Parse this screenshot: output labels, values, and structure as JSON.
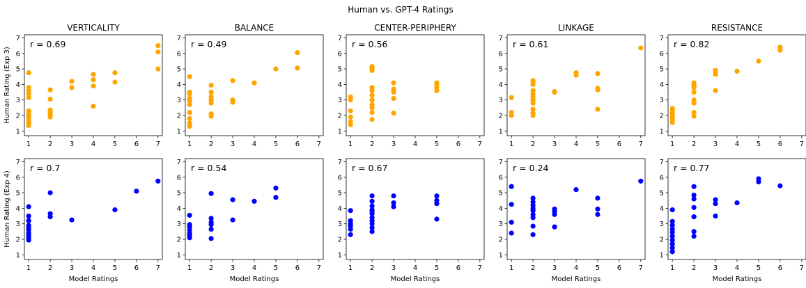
{
  "figure": {
    "title": "Human vs. GPT-4 Ratings"
  },
  "chart_data": [
    {
      "type": "scatter",
      "row": 0,
      "col": 0,
      "title": "VERTICALITY",
      "ylabel": "Human Rating (Exp 3)",
      "xlabel": "",
      "r_label": "r = 0.69",
      "xlim": [
        0.8,
        7.2
      ],
      "ylim": [
        0.7,
        7.2
      ],
      "color": "#ffa500",
      "points": [
        [
          1,
          1.35
        ],
        [
          1,
          1.5
        ],
        [
          1,
          1.7
        ],
        [
          1,
          1.9
        ],
        [
          1,
          2.1
        ],
        [
          1,
          2.3
        ],
        [
          1,
          3.15
        ],
        [
          1,
          3.4
        ],
        [
          1,
          3.6
        ],
        [
          1,
          3.8
        ],
        [
          1,
          4.75
        ],
        [
          2,
          1.9
        ],
        [
          2,
          2.05
        ],
        [
          2,
          2.2
        ],
        [
          2,
          2.35
        ],
        [
          2,
          3.05
        ],
        [
          2,
          3.65
        ],
        [
          3,
          3.8
        ],
        [
          3,
          4.2
        ],
        [
          4,
          2.6
        ],
        [
          4,
          3.9
        ],
        [
          4,
          4.3
        ],
        [
          4,
          4.65
        ],
        [
          5,
          4.15
        ],
        [
          5,
          4.75
        ],
        [
          7,
          5.0
        ],
        [
          7,
          6.1
        ],
        [
          7,
          6.5
        ]
      ]
    },
    {
      "type": "scatter",
      "row": 0,
      "col": 1,
      "title": "BALANCE",
      "ylabel": "",
      "xlabel": "",
      "r_label": "r = 0.49",
      "xlim": [
        0.8,
        7.2
      ],
      "ylim": [
        0.7,
        7.2
      ],
      "color": "#ffa500",
      "points": [
        [
          1,
          1.3
        ],
        [
          1,
          1.5
        ],
        [
          1,
          1.8
        ],
        [
          1,
          2.2
        ],
        [
          1,
          2.7
        ],
        [
          1,
          2.95
        ],
        [
          1,
          3.1
        ],
        [
          1,
          3.4
        ],
        [
          1,
          3.5
        ],
        [
          1,
          4.5
        ],
        [
          2,
          1.95
        ],
        [
          2,
          2.1
        ],
        [
          2,
          2.8
        ],
        [
          2,
          3.0
        ],
        [
          2,
          3.2
        ],
        [
          2,
          3.5
        ],
        [
          2,
          3.95
        ],
        [
          3,
          2.85
        ],
        [
          3,
          3.0
        ],
        [
          3,
          4.25
        ],
        [
          4,
          4.1
        ],
        [
          5,
          5.0
        ],
        [
          6,
          5.05
        ],
        [
          6,
          6.05
        ]
      ]
    },
    {
      "type": "scatter",
      "row": 0,
      "col": 2,
      "title": "CENTER-PERIPHERY",
      "ylabel": "",
      "xlabel": "",
      "r_label": "r = 0.56",
      "xlim": [
        0.8,
        7.2
      ],
      "ylim": [
        0.7,
        7.2
      ],
      "color": "#ffa500",
      "points": [
        [
          1,
          1.4
        ],
        [
          1,
          1.6
        ],
        [
          1,
          1.9
        ],
        [
          1,
          2.3
        ],
        [
          1,
          3.0
        ],
        [
          1,
          3.2
        ],
        [
          2,
          1.75
        ],
        [
          2,
          2.2
        ],
        [
          2,
          2.5
        ],
        [
          2,
          2.7
        ],
        [
          2,
          3.0
        ],
        [
          2,
          3.3
        ],
        [
          2,
          3.6
        ],
        [
          2,
          3.8
        ],
        [
          2,
          4.9
        ],
        [
          2,
          5.05
        ],
        [
          2,
          5.15
        ],
        [
          3,
          2.15
        ],
        [
          3,
          3.1
        ],
        [
          3,
          3.5
        ],
        [
          3,
          3.7
        ],
        [
          3,
          4.1
        ],
        [
          5,
          3.6
        ],
        [
          5,
          3.8
        ],
        [
          5,
          4.0
        ],
        [
          5,
          4.1
        ]
      ]
    },
    {
      "type": "scatter",
      "row": 0,
      "col": 3,
      "title": "LINKAGE",
      "ylabel": "",
      "xlabel": "",
      "r_label": "r = 0.61",
      "xlim": [
        0.8,
        7.2
      ],
      "ylim": [
        0.7,
        7.2
      ],
      "color": "#ffa500",
      "points": [
        [
          1,
          2.0
        ],
        [
          1,
          2.2
        ],
        [
          1,
          3.15
        ],
        [
          2,
          2.0
        ],
        [
          2,
          2.15
        ],
        [
          2,
          2.4
        ],
        [
          2,
          2.8
        ],
        [
          2,
          3.0
        ],
        [
          2,
          3.2
        ],
        [
          2,
          3.4
        ],
        [
          2,
          3.6
        ],
        [
          2,
          4.0
        ],
        [
          2,
          4.15
        ],
        [
          2,
          4.25
        ],
        [
          3,
          3.5
        ],
        [
          3,
          3.55
        ],
        [
          4,
          4.6
        ],
        [
          4,
          4.75
        ],
        [
          5,
          2.4
        ],
        [
          5,
          3.65
        ],
        [
          5,
          3.75
        ],
        [
          5,
          4.7
        ],
        [
          7,
          6.35
        ]
      ]
    },
    {
      "type": "scatter",
      "row": 0,
      "col": 4,
      "title": "RESISTANCE",
      "ylabel": "",
      "xlabel": "",
      "r_label": "r = 0.82",
      "xlim": [
        0.8,
        7.2
      ],
      "ylim": [
        0.7,
        7.2
      ],
      "color": "#ffa500",
      "points": [
        [
          1,
          1.55
        ],
        [
          1,
          1.7
        ],
        [
          1,
          1.85
        ],
        [
          1,
          2.0
        ],
        [
          1,
          2.15
        ],
        [
          1,
          2.3
        ],
        [
          1,
          2.45
        ],
        [
          2,
          1.95
        ],
        [
          2,
          2.2
        ],
        [
          2,
          2.8
        ],
        [
          2,
          3.0
        ],
        [
          2,
          3.5
        ],
        [
          2,
          3.8
        ],
        [
          2,
          3.95
        ],
        [
          2,
          4.1
        ],
        [
          3,
          3.6
        ],
        [
          3,
          4.65
        ],
        [
          3,
          4.8
        ],
        [
          3,
          4.9
        ],
        [
          4,
          4.85
        ],
        [
          5,
          5.5
        ],
        [
          6,
          6.2
        ],
        [
          6,
          6.4
        ]
      ]
    },
    {
      "type": "scatter",
      "row": 1,
      "col": 0,
      "title": "",
      "ylabel": "Human Rating (Exp 4)",
      "xlabel": "Model Ratings",
      "r_label": "r = 0.7",
      "xlim": [
        0.8,
        7.2
      ],
      "ylim": [
        0.7,
        7.2
      ],
      "color": "#0000ff",
      "points": [
        [
          1,
          1.95
        ],
        [
          1,
          2.1
        ],
        [
          1,
          2.25
        ],
        [
          1,
          2.4
        ],
        [
          1,
          2.6
        ],
        [
          1,
          2.75
        ],
        [
          1,
          2.9
        ],
        [
          1,
          3.2
        ],
        [
          1,
          3.5
        ],
        [
          1,
          4.1
        ],
        [
          2,
          3.45
        ],
        [
          2,
          3.65
        ],
        [
          2,
          5.0
        ],
        [
          3,
          3.25
        ],
        [
          5,
          3.9
        ],
        [
          6,
          5.1
        ],
        [
          7,
          5.75
        ]
      ]
    },
    {
      "type": "scatter",
      "row": 1,
      "col": 1,
      "title": "",
      "ylabel": "",
      "xlabel": "Model Ratings",
      "r_label": "r = 0.54",
      "xlim": [
        0.8,
        7.2
      ],
      "ylim": [
        0.7,
        7.2
      ],
      "color": "#0000ff",
      "points": [
        [
          1,
          2.1
        ],
        [
          1,
          2.25
        ],
        [
          1,
          2.4
        ],
        [
          1,
          2.6
        ],
        [
          1,
          2.8
        ],
        [
          1,
          2.95
        ],
        [
          1,
          3.55
        ],
        [
          2,
          2.05
        ],
        [
          2,
          2.65
        ],
        [
          2,
          2.95
        ],
        [
          2,
          3.1
        ],
        [
          2,
          3.35
        ],
        [
          2,
          4.95
        ],
        [
          3,
          3.25
        ],
        [
          3,
          4.55
        ],
        [
          4,
          4.45
        ],
        [
          5,
          4.7
        ],
        [
          5,
          5.3
        ]
      ]
    },
    {
      "type": "scatter",
      "row": 1,
      "col": 2,
      "title": "",
      "ylabel": "",
      "xlabel": "Model Ratings",
      "r_label": "r = 0.67",
      "xlim": [
        0.8,
        7.2
      ],
      "ylim": [
        0.7,
        7.2
      ],
      "color": "#0000ff",
      "points": [
        [
          1,
          2.3
        ],
        [
          1,
          2.65
        ],
        [
          1,
          2.85
        ],
        [
          1,
          3.0
        ],
        [
          1,
          3.2
        ],
        [
          1,
          3.85
        ],
        [
          2,
          2.5
        ],
        [
          2,
          2.75
        ],
        [
          2,
          3.0
        ],
        [
          2,
          3.2
        ],
        [
          2,
          3.4
        ],
        [
          2,
          3.65
        ],
        [
          2,
          3.8
        ],
        [
          2,
          3.9
        ],
        [
          2,
          4.15
        ],
        [
          2,
          4.45
        ],
        [
          2,
          4.8
        ],
        [
          3,
          4.1
        ],
        [
          3,
          4.35
        ],
        [
          3,
          4.8
        ],
        [
          5,
          3.3
        ],
        [
          5,
          4.3
        ],
        [
          5,
          4.5
        ],
        [
          5,
          4.8
        ]
      ]
    },
    {
      "type": "scatter",
      "row": 1,
      "col": 3,
      "title": "",
      "ylabel": "",
      "xlabel": "Model Ratings",
      "r_label": "r = 0.24",
      "xlim": [
        0.8,
        7.2
      ],
      "ylim": [
        0.7,
        7.2
      ],
      "color": "#0000ff",
      "points": [
        [
          1,
          2.4
        ],
        [
          1,
          3.1
        ],
        [
          1,
          4.25
        ],
        [
          1,
          5.4
        ],
        [
          2,
          2.3
        ],
        [
          2,
          2.85
        ],
        [
          2,
          3.4
        ],
        [
          2,
          3.6
        ],
        [
          2,
          3.85
        ],
        [
          2,
          4.0
        ],
        [
          2,
          4.2
        ],
        [
          2,
          4.4
        ],
        [
          2,
          4.65
        ],
        [
          3,
          2.8
        ],
        [
          3,
          3.6
        ],
        [
          3,
          3.8
        ],
        [
          3,
          3.95
        ],
        [
          4,
          5.2
        ],
        [
          5,
          3.6
        ],
        [
          5,
          3.95
        ],
        [
          5,
          4.65
        ],
        [
          7,
          5.75
        ]
      ]
    },
    {
      "type": "scatter",
      "row": 1,
      "col": 4,
      "title": "",
      "ylabel": "",
      "xlabel": "Model Ratings",
      "r_label": "r = 0.77",
      "xlim": [
        0.8,
        7.2
      ],
      "ylim": [
        0.7,
        7.2
      ],
      "color": "#0000ff",
      "points": [
        [
          1,
          1.2
        ],
        [
          1,
          1.45
        ],
        [
          1,
          1.7
        ],
        [
          1,
          1.95
        ],
        [
          1,
          2.2
        ],
        [
          1,
          2.45
        ],
        [
          1,
          2.65
        ],
        [
          1,
          2.9
        ],
        [
          1,
          3.15
        ],
        [
          1,
          3.9
        ],
        [
          2,
          2.2
        ],
        [
          2,
          2.5
        ],
        [
          2,
          3.45
        ],
        [
          2,
          4.05
        ],
        [
          2,
          4.6
        ],
        [
          2,
          4.85
        ],
        [
          2,
          5.4
        ],
        [
          3,
          3.5
        ],
        [
          3,
          4.3
        ],
        [
          3,
          4.55
        ],
        [
          4,
          4.35
        ],
        [
          5,
          5.7
        ],
        [
          5,
          5.9
        ],
        [
          6,
          5.45
        ]
      ]
    }
  ],
  "ticks": {
    "x": [
      "1",
      "2",
      "3",
      "4",
      "5",
      "6",
      "7"
    ],
    "y": [
      "1",
      "2",
      "3",
      "4",
      "5",
      "6",
      "7"
    ]
  }
}
